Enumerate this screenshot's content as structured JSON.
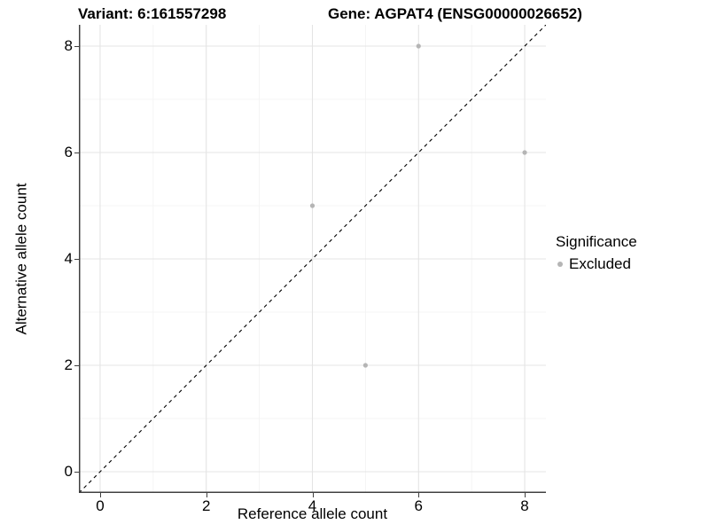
{
  "colors": {
    "background": "#ffffff",
    "panel_background": "#ffffff",
    "grid_major": "#e4e4e4",
    "grid_minor": "#f2f2f2",
    "axis_line": "#404040",
    "tick_mark": "#404040",
    "text": "#000000",
    "point": "#b5b5b5",
    "identity_line": "#000000"
  },
  "chart_data": {
    "type": "scatter",
    "titles": {
      "left": "Variant: 6:161557298",
      "right": "Gene: AGPAT4 (ENSG00000026652)"
    },
    "xlabel": "Reference allele count",
    "ylabel": "Alternative allele count",
    "xlim": [
      -0.4,
      8.4
    ],
    "ylim": [
      -0.4,
      8.4
    ],
    "xticks": [
      0,
      2,
      4,
      6,
      8
    ],
    "yticks": [
      0,
      2,
      4,
      6,
      8
    ],
    "xticks_minor": [
      1,
      3,
      5,
      7
    ],
    "yticks_minor": [
      1,
      3,
      5,
      7
    ],
    "grid": "major+minor",
    "series": [
      {
        "name": "Excluded",
        "color": "#b5b5b5",
        "points": [
          [
            4,
            5
          ],
          [
            5,
            2
          ],
          [
            6,
            8
          ],
          [
            8,
            6
          ]
        ]
      }
    ],
    "identity_line": {
      "style": "dashed",
      "color": "#000000",
      "from": [
        -0.4,
        -0.4
      ],
      "to": [
        8.4,
        8.4
      ]
    },
    "legend": {
      "title": "Significance",
      "position": "right",
      "items": [
        {
          "label": "Excluded",
          "color": "#b5b5b5"
        }
      ]
    }
  }
}
